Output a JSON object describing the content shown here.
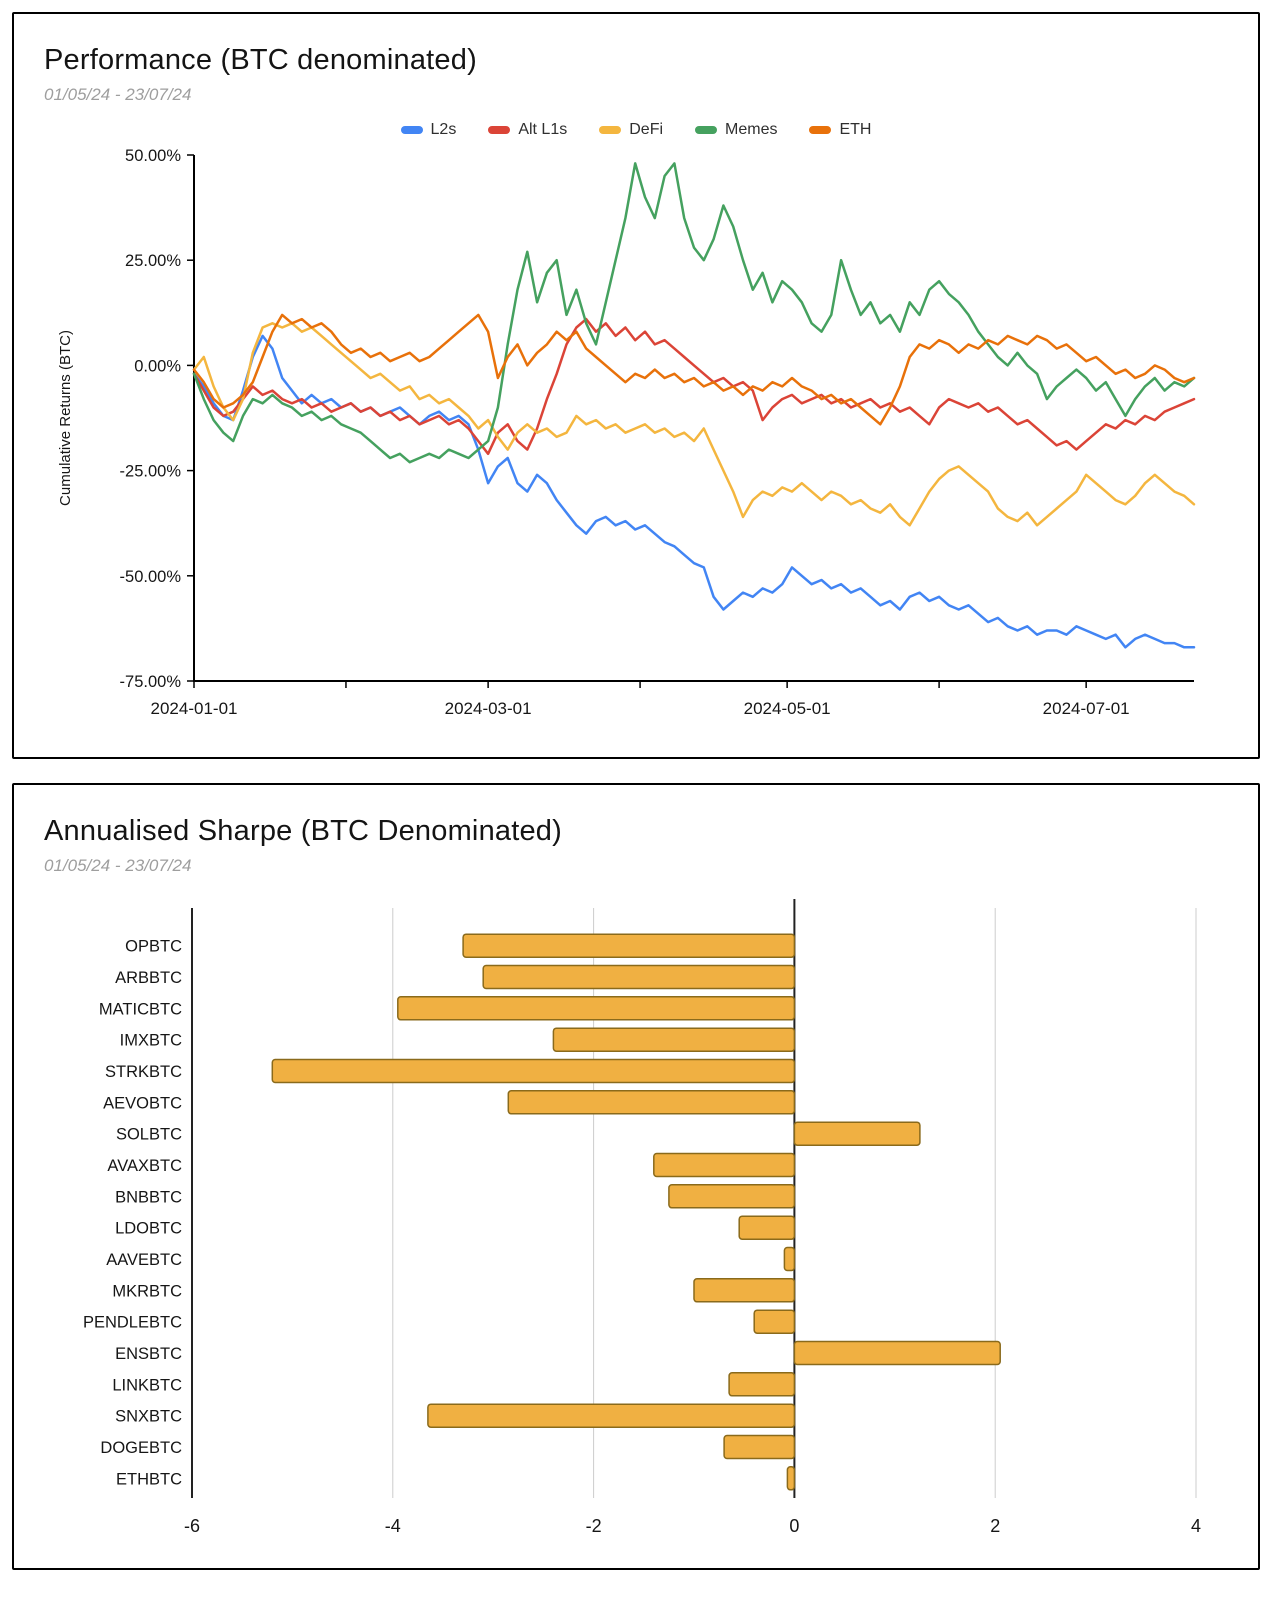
{
  "performance": {
    "title": "Performance (BTC denominated)",
    "subtitle": "01/05/24 - 23/07/24",
    "chart_data": {
      "type": "line",
      "ylabel": "Cumulative Returns (BTC)",
      "ylim": [
        -75,
        50
      ],
      "xlim": [
        0,
        204
      ],
      "sample_step_days": 2,
      "y_ticks": [
        {
          "v": 50,
          "label": "50.00%"
        },
        {
          "v": 25,
          "label": "25.00%"
        },
        {
          "v": 0,
          "label": "0.00%"
        },
        {
          "v": -25,
          "label": "-25.00%"
        },
        {
          "v": -50,
          "label": "-50.00%"
        },
        {
          "v": -75,
          "label": "-75.00%"
        }
      ],
      "x_ticks": [
        {
          "day": 0,
          "label": "2024-01-01"
        },
        {
          "day": 60,
          "label": "2024-03-01"
        },
        {
          "day": 121,
          "label": "2024-05-01"
        },
        {
          "day": 182,
          "label": "2024-07-01"
        }
      ],
      "x_minor_tick_days": [
        31,
        91,
        152
      ],
      "series": [
        {
          "name": "L2s",
          "color": "#4285F4",
          "values": [
            -2,
            -5,
            -9,
            -12,
            -13,
            -6,
            2,
            7,
            4,
            -3,
            -6,
            -9,
            -7,
            -9,
            -8,
            -10,
            -9,
            -11,
            -10,
            -12,
            -11,
            -10,
            -12,
            -14,
            -12,
            -11,
            -13,
            -12,
            -14,
            -20,
            -28,
            -24,
            -22,
            -28,
            -30,
            -26,
            -28,
            -32,
            -35,
            -38,
            -40,
            -37,
            -36,
            -38,
            -37,
            -39,
            -38,
            -40,
            -42,
            -43,
            -45,
            -47,
            -48,
            -55,
            -58,
            -56,
            -54,
            -55,
            -53,
            -54,
            -52,
            -48,
            -50,
            -52,
            -51,
            -53,
            -52,
            -54,
            -53,
            -55,
            -57,
            -56,
            -58,
            -55,
            -54,
            -56,
            -55,
            -57,
            -58,
            -57,
            -59,
            -61,
            -60,
            -62,
            -63,
            -62,
            -64,
            -63,
            -63,
            -64,
            -62,
            -63,
            -64,
            -65,
            -64,
            -67,
            -65,
            -64,
            -65,
            -66,
            -66,
            -67,
            -67
          ]
        },
        {
          "name": "Alt L1s",
          "color": "#DB4437",
          "values": [
            -2,
            -6,
            -10,
            -12,
            -11,
            -8,
            -5,
            -7,
            -6,
            -8,
            -9,
            -8,
            -10,
            -9,
            -11,
            -10,
            -9,
            -11,
            -10,
            -12,
            -11,
            -13,
            -12,
            -14,
            -13,
            -12,
            -14,
            -13,
            -15,
            -18,
            -21,
            -16,
            -14,
            -18,
            -20,
            -15,
            -8,
            -2,
            5,
            9,
            11,
            8,
            10,
            7,
            9,
            6,
            8,
            5,
            6,
            4,
            2,
            0,
            -2,
            -4,
            -3,
            -5,
            -4,
            -6,
            -13,
            -10,
            -8,
            -7,
            -9,
            -8,
            -7,
            -9,
            -8,
            -10,
            -9,
            -8,
            -10,
            -9,
            -11,
            -10,
            -12,
            -14,
            -10,
            -8,
            -9,
            -10,
            -9,
            -11,
            -10,
            -12,
            -14,
            -13,
            -15,
            -17,
            -19,
            -18,
            -20,
            -18,
            -16,
            -14,
            -15,
            -13,
            -14,
            -12,
            -13,
            -11,
            -10,
            -9,
            -8
          ]
        },
        {
          "name": "DeFi",
          "color": "#F4B63F",
          "values": [
            -1,
            2,
            -5,
            -10,
            -13,
            -8,
            3,
            9,
            10,
            9,
            10,
            8,
            9,
            7,
            5,
            3,
            1,
            -1,
            -3,
            -2,
            -4,
            -6,
            -5,
            -8,
            -7,
            -9,
            -8,
            -10,
            -12,
            -15,
            -13,
            -17,
            -20,
            -16,
            -14,
            -16,
            -15,
            -17,
            -16,
            -12,
            -14,
            -13,
            -15,
            -14,
            -16,
            -15,
            -14,
            -16,
            -15,
            -17,
            -16,
            -18,
            -15,
            -20,
            -25,
            -30,
            -36,
            -32,
            -30,
            -31,
            -29,
            -30,
            -28,
            -30,
            -32,
            -30,
            -31,
            -33,
            -32,
            -34,
            -35,
            -33,
            -36,
            -38,
            -34,
            -30,
            -27,
            -25,
            -24,
            -26,
            -28,
            -30,
            -34,
            -36,
            -37,
            -35,
            -38,
            -36,
            -34,
            -32,
            -30,
            -26,
            -28,
            -30,
            -32,
            -33,
            -31,
            -28,
            -26,
            -28,
            -30,
            -31,
            -33
          ]
        },
        {
          "name": "Memes",
          "color": "#45A15F",
          "values": [
            -2,
            -8,
            -13,
            -16,
            -18,
            -12,
            -8,
            -9,
            -7,
            -9,
            -10,
            -12,
            -11,
            -13,
            -12,
            -14,
            -15,
            -16,
            -18,
            -20,
            -22,
            -21,
            -23,
            -22,
            -21,
            -22,
            -20,
            -21,
            -22,
            -20,
            -18,
            -10,
            5,
            18,
            27,
            15,
            22,
            25,
            12,
            18,
            10,
            5,
            15,
            25,
            35,
            48,
            40,
            35,
            45,
            48,
            35,
            28,
            25,
            30,
            38,
            33,
            25,
            18,
            22,
            15,
            20,
            18,
            15,
            10,
            8,
            12,
            25,
            18,
            12,
            15,
            10,
            12,
            8,
            15,
            12,
            18,
            20,
            17,
            15,
            12,
            8,
            5,
            2,
            0,
            3,
            0,
            -2,
            -8,
            -5,
            -3,
            -1,
            -3,
            -6,
            -4,
            -8,
            -12,
            -8,
            -5,
            -3,
            -6,
            -4,
            -5,
            -3
          ]
        },
        {
          "name": "ETH",
          "color": "#E8710A",
          "values": [
            -1,
            -4,
            -8,
            -10,
            -9,
            -7,
            -4,
            2,
            8,
            12,
            10,
            11,
            9,
            10,
            8,
            5,
            3,
            4,
            2,
            3,
            1,
            2,
            3,
            1,
            2,
            4,
            6,
            8,
            10,
            12,
            8,
            -3,
            2,
            5,
            0,
            3,
            5,
            8,
            6,
            8,
            4,
            2,
            0,
            -2,
            -4,
            -2,
            -3,
            -1,
            -3,
            -2,
            -4,
            -3,
            -5,
            -4,
            -6,
            -5,
            -7,
            -5,
            -6,
            -4,
            -5,
            -3,
            -5,
            -6,
            -8,
            -7,
            -9,
            -8,
            -10,
            -12,
            -14,
            -10,
            -5,
            2,
            5,
            4,
            6,
            5,
            3,
            5,
            4,
            6,
            5,
            7,
            6,
            5,
            7,
            6,
            4,
            5,
            3,
            1,
            2,
            0,
            -2,
            -1,
            -3,
            -2,
            0,
            -1,
            -3,
            -4,
            -3
          ]
        }
      ]
    }
  },
  "sharpe": {
    "title": "Annualised Sharpe (BTC Denominated)",
    "subtitle": "01/05/24 - 23/07/24",
    "chart_data": {
      "type": "bar",
      "orientation": "horizontal",
      "categories": [
        "OPBTC",
        "ARBBTC",
        "MATICBTC",
        "IMXBTC",
        "STRKBTC",
        "AEVOBTC",
        "SOLBTC",
        "AVAXBTC",
        "BNBBTC",
        "LDOBTC",
        "AAVEBTC",
        "MKRBTC",
        "PENDLEBTC",
        "ENSBTC",
        "LINKBTC",
        "SNXBTC",
        "DOGEBTC",
        "ETHBTC"
      ],
      "values": [
        -3.3,
        -3.1,
        -3.95,
        -2.4,
        -5.2,
        -2.85,
        1.25,
        -1.4,
        -1.25,
        -0.55,
        -0.1,
        -1.0,
        -0.4,
        2.05,
        -0.65,
        -3.65,
        -0.7,
        -0.07
      ],
      "xlim": [
        -6,
        4
      ],
      "x_ticks": [
        -6,
        -4,
        -2,
        0,
        2,
        4
      ],
      "bar_color": "#F0B042",
      "bar_border": "#8A6A1B",
      "grid_color": "#cccccc",
      "axis_color": "#222222"
    }
  }
}
